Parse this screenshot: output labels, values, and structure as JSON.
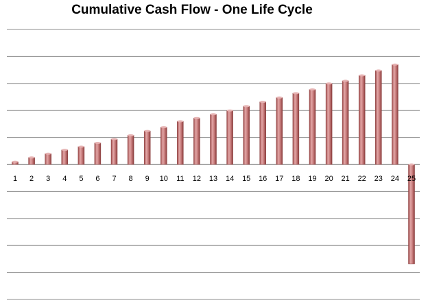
{
  "chart_data": {
    "type": "bar",
    "title": "Cumulative Cash Flow - One Life Cycle",
    "xlabel": "",
    "ylabel": "",
    "categories": [
      "1",
      "2",
      "3",
      "4",
      "5",
      "6",
      "7",
      "8",
      "9",
      "10",
      "11",
      "12",
      "13",
      "14",
      "15",
      "16",
      "17",
      "18",
      "19",
      "20",
      "21",
      "22",
      "23",
      "24",
      "25"
    ],
    "values": [
      0.5,
      1.3,
      2.0,
      2.7,
      3.3,
      4.0,
      4.7,
      5.4,
      6.2,
      6.9,
      8.0,
      8.6,
      9.3,
      10.0,
      10.8,
      11.6,
      12.4,
      13.2,
      13.9,
      15.0,
      15.5,
      16.5,
      17.4,
      18.5,
      -18.4
    ],
    "ylim": [
      -25,
      25
    ],
    "grid": true,
    "bar_color": "#c07070",
    "gridline_color": "#8c8c8c"
  }
}
